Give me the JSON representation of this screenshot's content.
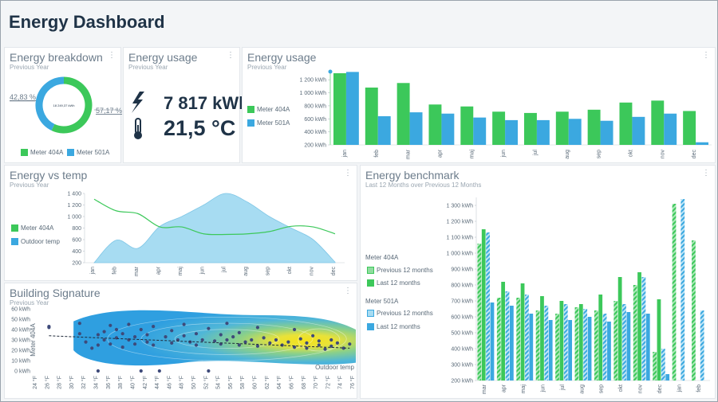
{
  "page": {
    "title": "Energy Dashboard",
    "menu_glyph": "⋮"
  },
  "colors": {
    "green": "#3cc85a",
    "blue": "#3ba8e0",
    "lightblue": "#a7dcf2",
    "text": "#6c7c8b",
    "title": "#1f3347"
  },
  "breakdown": {
    "title": "Energy breakdown",
    "subtitle": "Previous Year",
    "chart_data": {
      "type": "pie",
      "categories": [
        "Meter 404A",
        "Meter 501A"
      ],
      "values": [
        57.17,
        42.83
      ],
      "labels": [
        "57,17 %",
        "42,83 %"
      ],
      "center_label": "18 249,37 kWh",
      "legend": "bottom"
    }
  },
  "usage_kpi": {
    "title": "Energy usage",
    "subtitle": "Previous Year",
    "energy_value": "7 817 kWh",
    "temp_value": "21,5 °C",
    "icons": [
      "lightning-icon",
      "thermometer-icon"
    ]
  },
  "usage_bar": {
    "title": "Energy usage",
    "subtitle": "Previous Year",
    "chart_data": {
      "type": "bar",
      "categories": [
        "jan",
        "feb",
        "mar",
        "apr",
        "maj",
        "jun",
        "jul",
        "aug",
        "sep",
        "okt",
        "nov",
        "dec"
      ],
      "series": [
        {
          "name": "Meter 404A",
          "color": "#3cc85a",
          "values": [
            1300,
            1080,
            1150,
            820,
            790,
            710,
            690,
            710,
            740,
            850,
            880,
            720
          ]
        },
        {
          "name": "Meter 501A",
          "color": "#3ba8e0",
          "values": [
            1320,
            640,
            700,
            680,
            620,
            580,
            580,
            600,
            570,
            630,
            680,
            240
          ]
        }
      ],
      "ylim": [
        200,
        1300
      ],
      "yticks": [
        200,
        400,
        600,
        800,
        1000,
        1200
      ],
      "ytick_labels": [
        "200 kWh",
        "400 kWh",
        "600 kWh",
        "800 kWh",
        "1 000 kWh",
        "1 200 kWh"
      ],
      "legend": "left"
    }
  },
  "vs_temp": {
    "title": "Energy vs temp",
    "subtitle": "Previous Year",
    "chart_data": {
      "type": "area",
      "categories": [
        "jan",
        "feb",
        "mar",
        "apr",
        "maj",
        "jun",
        "jul",
        "aug",
        "sep",
        "okt",
        "nov",
        "dec"
      ],
      "series": [
        {
          "name": "Meter 404A",
          "kind": "line",
          "color": "#3cc85a",
          "values": [
            1300,
            1100,
            1050,
            820,
            820,
            700,
            690,
            700,
            740,
            830,
            820,
            700
          ]
        },
        {
          "name": "Outdoor temp",
          "kind": "area",
          "color": "#a7dcf2",
          "values": [
            200,
            590,
            450,
            830,
            1000,
            1200,
            1400,
            1250,
            1000,
            800,
            600,
            210
          ]
        }
      ],
      "ylim": [
        200,
        1400
      ],
      "yticks": [
        200,
        400,
        600,
        800,
        1000,
        1200,
        1400
      ],
      "ytick_labels": [
        "200",
        "400",
        "600",
        "800",
        "1 000",
        "1 200",
        "1 400"
      ],
      "legend": "left"
    }
  },
  "signature": {
    "title": "Building Signature",
    "subtitle": "Previous Year",
    "chart_data": {
      "type": "scatter",
      "xlabel": "Outdoor temp",
      "ylabel": "Meter 404A",
      "xlim": [
        24,
        76
      ],
      "ylim": [
        0,
        60
      ],
      "xtick_labels": [
        "24 °F",
        "26 °F",
        "28 °F",
        "30 °F",
        "32 °F",
        "34 °F",
        "36 °F",
        "38 °F",
        "40 °F",
        "42 °F",
        "44 °F",
        "46 °F",
        "48 °F",
        "50 °F",
        "52 °F",
        "54 °F",
        "56 °F",
        "58 °F",
        "60 °F",
        "62 °F",
        "64 °F",
        "66 °F",
        "68 °F",
        "70 °F",
        "72 °F",
        "74 °F",
        "76 °F"
      ],
      "yticks": [
        0,
        10,
        20,
        30,
        40,
        50,
        60
      ],
      "ytick_labels": [
        "0 kWh",
        "10 kWh",
        "20 kWh",
        "30 kWh",
        "40 kWh",
        "50 kWh",
        "60 kWh"
      ],
      "trend": {
        "x": [
          26,
          75
        ],
        "y": [
          34,
          22
        ]
      },
      "points": [
        [
          26,
          43
        ],
        [
          26,
          42
        ],
        [
          31,
          46
        ],
        [
          31,
          36
        ],
        [
          32,
          28
        ],
        [
          33,
          22
        ],
        [
          34,
          35
        ],
        [
          34,
          25
        ],
        [
          34,
          0
        ],
        [
          35,
          38
        ],
        [
          35,
          30
        ],
        [
          36,
          44
        ],
        [
          36,
          26
        ],
        [
          37,
          40
        ],
        [
          37,
          32
        ],
        [
          38,
          36
        ],
        [
          38,
          23
        ],
        [
          39,
          45
        ],
        [
          39,
          30
        ],
        [
          40,
          26
        ],
        [
          40,
          33
        ],
        [
          41,
          40
        ],
        [
          41,
          0
        ],
        [
          42,
          28
        ],
        [
          42,
          35
        ],
        [
          43,
          43
        ],
        [
          43,
          25
        ],
        [
          44,
          0
        ],
        [
          45,
          33
        ],
        [
          46,
          39
        ],
        [
          46,
          27
        ],
        [
          47,
          30
        ],
        [
          48,
          45
        ],
        [
          48,
          34
        ],
        [
          49,
          28
        ],
        [
          50,
          36
        ],
        [
          50,
          25
        ],
        [
          51,
          30
        ],
        [
          52,
          41
        ],
        [
          52,
          0
        ],
        [
          53,
          29
        ],
        [
          54,
          35
        ],
        [
          54,
          26
        ],
        [
          55,
          46
        ],
        [
          55,
          30
        ],
        [
          56,
          33
        ],
        [
          57,
          25
        ],
        [
          57,
          37
        ],
        [
          58,
          28
        ],
        [
          59,
          30
        ],
        [
          60,
          42
        ],
        [
          60,
          24
        ],
        [
          61,
          32
        ],
        [
          62,
          27
        ],
        [
          63,
          30
        ],
        [
          64,
          25
        ],
        [
          65,
          28
        ],
        [
          66,
          40
        ],
        [
          66,
          23
        ],
        [
          67,
          31
        ],
        [
          68,
          27
        ],
        [
          68,
          22
        ],
        [
          69,
          34
        ],
        [
          70,
          25
        ],
        [
          70,
          29
        ],
        [
          71,
          21
        ],
        [
          72,
          30
        ],
        [
          72,
          24
        ],
        [
          73,
          27
        ],
        [
          74,
          22
        ],
        [
          75,
          26
        ]
      ]
    }
  },
  "benchmark": {
    "title": "Energy benchmark",
    "subtitle": "Last 12 Months over Previous 12 Months",
    "legend_groups": [
      {
        "name": "Meter 404A",
        "items": [
          "Previous 12 months",
          "Last 12 months"
        ]
      },
      {
        "name": "Meter 501A",
        "items": [
          "Previous 12 months",
          "Last 12 months"
        ]
      }
    ],
    "chart_data": {
      "type": "bar",
      "categories": [
        "mar",
        "apr",
        "maj",
        "jun",
        "jul",
        "aug",
        "sep",
        "okt",
        "nov",
        "dec",
        "jan",
        "feb"
      ],
      "series": [
        {
          "name": "Meter 404A Previous 12 months",
          "color": "#3cc85a",
          "hatched": true,
          "values": [
            1060,
            720,
            720,
            640,
            620,
            660,
            640,
            700,
            800,
            380,
            1310,
            1080
          ]
        },
        {
          "name": "Meter 404A Last 12 months",
          "color": "#3cc85a",
          "hatched": false,
          "values": [
            1150,
            820,
            810,
            730,
            700,
            680,
            740,
            850,
            880,
            710,
            null,
            null
          ]
        },
        {
          "name": "Meter 501A Previous 12 months",
          "color": "#3ba8e0",
          "hatched": true,
          "values": [
            1130,
            760,
            740,
            670,
            680,
            650,
            620,
            680,
            850,
            400,
            1340,
            640
          ]
        },
        {
          "name": "Meter 501A Last 12 months",
          "color": "#3ba8e0",
          "hatched": false,
          "values": [
            690,
            670,
            620,
            580,
            580,
            600,
            570,
            630,
            620,
            240,
            null,
            null
          ]
        }
      ],
      "ylim": [
        200,
        1350
      ],
      "yticks": [
        200,
        300,
        400,
        500,
        600,
        700,
        800,
        900,
        1000,
        1100,
        1200,
        1300
      ],
      "ytick_labels": [
        "200 kWh",
        "300 kWh",
        "400 kWh",
        "500 kWh",
        "600 kWh",
        "700 kWh",
        "800 kWh",
        "900 kWh",
        "1 000 kWh",
        "1 100 kWh",
        "1 200 kWh",
        "1 300 kWh"
      ],
      "legend": "left"
    }
  }
}
